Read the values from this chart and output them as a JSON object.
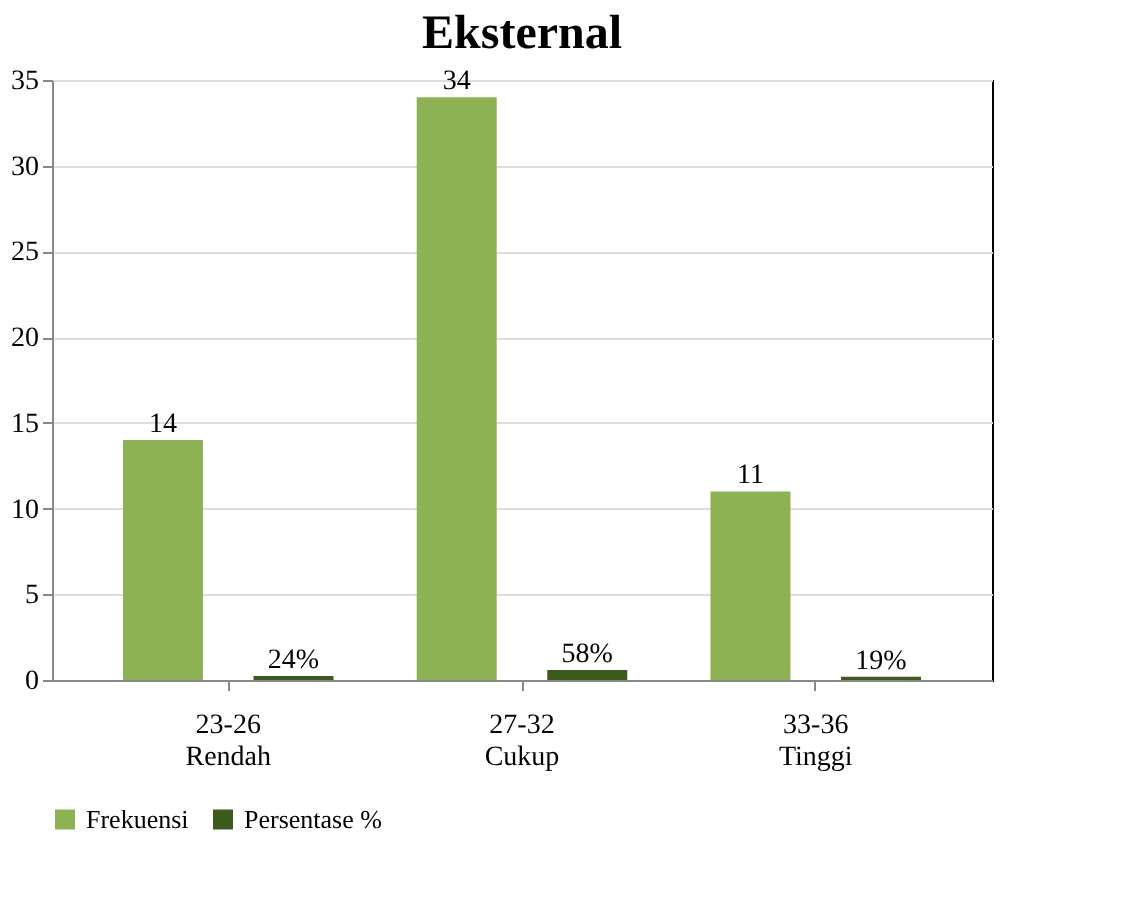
{
  "chart_data": {
    "type": "bar",
    "title": "Eksternal",
    "categories": [
      "23-26\nRendah",
      "27-32\nCukup",
      "33-36\nTinggi"
    ],
    "series": [
      {
        "name": "Frekuensi",
        "color": "#8db254",
        "values": [
          14,
          34,
          11
        ],
        "value_labels": [
          "14",
          "34",
          "11"
        ]
      },
      {
        "name": "Persentase %",
        "color": "#3d5a1e",
        "values": [
          0.24,
          0.58,
          0.19
        ],
        "value_labels": [
          "24%",
          "58%",
          "19%"
        ]
      }
    ],
    "ylim": [
      0,
      35
    ],
    "yticks": [
      0,
      5,
      10,
      15,
      20,
      25,
      30,
      35
    ],
    "grid": "y",
    "legend": "bottom"
  }
}
